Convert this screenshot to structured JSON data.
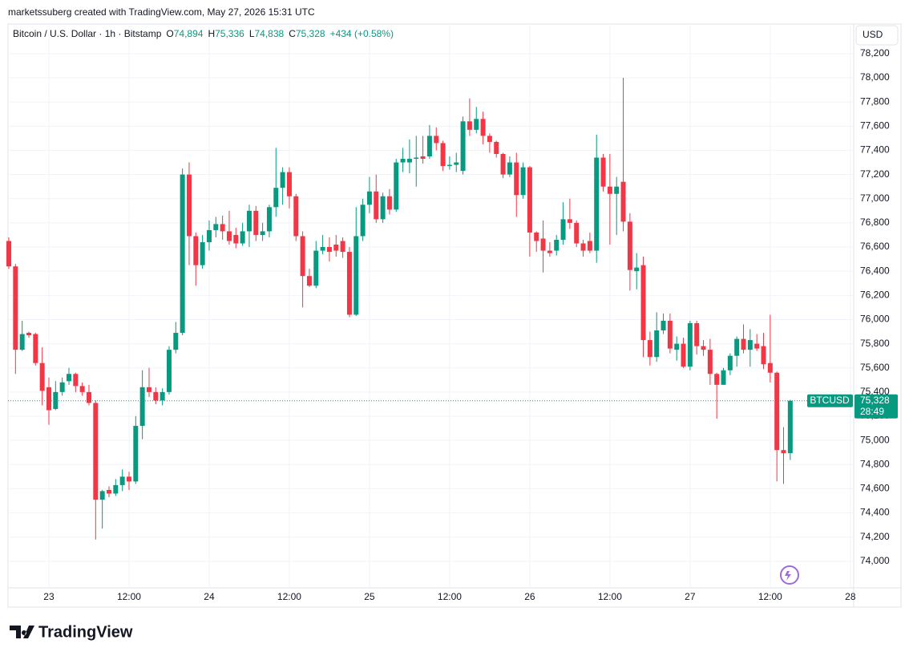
{
  "header": {
    "credit": "marketssuberg created with TradingView.com, May 27, 2026 15:31 UTC"
  },
  "footer": {
    "brand": "TradingView"
  },
  "chart_data": {
    "type": "candlestick",
    "legend": {
      "symbol": "Bitcoin / U.S. Dollar · 1h · Bitstamp",
      "o_key": "O",
      "o": "74,894",
      "h_key": "H",
      "h": "75,336",
      "l_key": "L",
      "l": "74,838",
      "c_key": "C",
      "c": "75,328",
      "change": "+434 (+0.58%)"
    },
    "currency": "USD",
    "tag_symbol": "BTCUSD",
    "tag_price": "75,328",
    "tag_countdown": "28:49",
    "up_color": "#089981",
    "down_color": "#f23645",
    "open": [
      76650,
      76440,
      75750,
      75890,
      75880,
      75640,
      75440,
      75260,
      75400,
      75490,
      75550,
      75450,
      75400,
      75310,
      74510,
      74590,
      74560,
      74630,
      74700,
      74660,
      75120,
      75440,
      75400,
      75330,
      75400,
      75750,
      75890,
      77200,
      76690,
      76450,
      76640,
      76740,
      76790,
      76730,
      76700,
      76630,
      76730,
      76900,
      76700,
      76730,
      76930,
      77090,
      77220,
      77020,
      76690,
      76360,
      76280,
      76570,
      76600,
      76620,
      76650,
      76560,
      76040,
      76690,
      76950,
      77060,
      76830,
      77020,
      76910,
      77300,
      77300,
      77330,
      77350,
      77350,
      77520,
      77460,
      77270,
      77280,
      77230,
      77640,
      77570,
      77660,
      77520,
      77470,
      77370,
      77200,
      77300,
      77030,
      77260,
      76720,
      76670,
      76570,
      76570,
      76660,
      76830,
      76800,
      76630,
      76650,
      76570,
      77340,
      77100,
      77040,
      77140,
      76810,
      76400,
      76450,
      75830,
      75690,
      75910,
      75990,
      75750,
      75800,
      75610,
      75970,
      75780,
      75750,
      75550,
      75460,
      75580,
      75700,
      75840,
      75750,
      75800,
      75780,
      75640,
      75560,
      74920,
      74894
    ],
    "high": [
      76680,
      76460,
      75990,
      75900,
      75890,
      75770,
      75520,
      75490,
      75520,
      75600,
      75560,
      75480,
      75460,
      75330,
      74590,
      74620,
      74680,
      74760,
      74740,
      75200,
      75580,
      75600,
      75440,
      75430,
      75780,
      75980,
      77250,
      77300,
      76720,
      76700,
      76820,
      76850,
      76860,
      76900,
      76760,
      76800,
      76950,
      76940,
      76800,
      76950,
      77420,
      77260,
      77260,
      77040,
      76730,
      76420,
      76650,
      76700,
      76680,
      76700,
      76680,
      76600,
      76930,
      77000,
      77180,
      77200,
      77050,
      77080,
      77330,
      77420,
      77490,
      77520,
      77520,
      77610,
      77590,
      77480,
      77350,
      77380,
      77680,
      77830,
      77760,
      77720,
      77540,
      77480,
      77380,
      77350,
      77380,
      77300,
      77270,
      76730,
      76820,
      76640,
      76700,
      76970,
      77000,
      76820,
      76660,
      76720,
      77530,
      77370,
      77370,
      77180,
      78000,
      76880,
      76550,
      76520,
      75900,
      76060,
      76050,
      76050,
      75860,
      75850,
      75990,
      75990,
      75830,
      75840,
      75560,
      75600,
      75720,
      75860,
      75960,
      75920,
      75880,
      75890,
      76040,
      75570,
      75110,
      75336
    ],
    "low": [
      76420,
      75550,
      75740,
      75850,
      75620,
      75290,
      75130,
      75250,
      75370,
      75460,
      75400,
      75370,
      75290,
      74180,
      74270,
      74530,
      74540,
      74580,
      74590,
      74640,
      75010,
      75360,
      75300,
      75290,
      75380,
      75720,
      75870,
      76450,
      76280,
      76420,
      76570,
      76680,
      76660,
      76620,
      76590,
      76610,
      76600,
      76650,
      76650,
      76680,
      76850,
      76950,
      76920,
      76650,
      76100,
      76270,
      76260,
      76540,
      76480,
      76520,
      76510,
      76020,
      76030,
      76650,
      76880,
      76800,
      76800,
      76870,
      76890,
      77220,
      77210,
      77100,
      77290,
      77330,
      77400,
      77230,
      77240,
      77220,
      77200,
      77520,
      77540,
      77450,
      77380,
      77340,
      77170,
      77180,
      76850,
      77000,
      76520,
      76560,
      76390,
      76520,
      76530,
      76620,
      76750,
      76600,
      76520,
      76550,
      76470,
      77060,
      76620,
      76700,
      76730,
      76240,
      76250,
      75690,
      75620,
      75650,
      75880,
      75720,
      75660,
      75600,
      75580,
      75710,
      75700,
      75460,
      75180,
      75460,
      75540,
      75610,
      75720,
      75610,
      75740,
      75590,
      75480,
      74660,
      74640,
      74838
    ],
    "close": [
      76440,
      75750,
      75880,
      75870,
      75640,
      75410,
      75250,
      75400,
      75480,
      75550,
      75450,
      75400,
      75310,
      74510,
      74580,
      74560,
      74630,
      74700,
      74660,
      75120,
      75440,
      75400,
      75330,
      75400,
      75750,
      75890,
      77200,
      76690,
      76450,
      76640,
      76740,
      76790,
      76730,
      76650,
      76630,
      76730,
      76900,
      76700,
      76730,
      76930,
      77090,
      77220,
      77020,
      76690,
      76360,
      76280,
      76570,
      76600,
      76560,
      76570,
      76560,
      76040,
      76690,
      76950,
      77060,
      76830,
      77020,
      76910,
      77300,
      77330,
      77330,
      77340,
      77330,
      77520,
      77460,
      77270,
      77280,
      77300,
      77640,
      77570,
      77660,
      77520,
      77470,
      77370,
      77200,
      77300,
      77030,
      77260,
      76720,
      76650,
      76570,
      76550,
      76660,
      76830,
      76800,
      76630,
      76570,
      76570,
      77340,
      77100,
      77040,
      77100,
      76810,
      76410,
      76430,
      75830,
      75690,
      75910,
      75990,
      75760,
      75800,
      75610,
      75970,
      75780,
      75750,
      75550,
      75460,
      75580,
      75700,
      75840,
      75750,
      75830,
      75760,
      75630,
      75560,
      74920,
      74894,
      75328
    ],
    "xlim": [
      -0.12,
      126.5
    ],
    "xticks": [
      {
        "value": 6,
        "label": "23"
      },
      {
        "value": 18,
        "label": "12:00"
      },
      {
        "value": 30,
        "label": "24"
      },
      {
        "value": 42,
        "label": "12:00"
      },
      {
        "value": 54,
        "label": "25"
      },
      {
        "value": 66,
        "label": "12:00"
      },
      {
        "value": 78,
        "label": "26"
      },
      {
        "value": 90,
        "label": "12:00"
      },
      {
        "value": 102,
        "label": "27"
      },
      {
        "value": 114,
        "label": "12:00"
      },
      {
        "value": 126,
        "label": "28"
      }
    ],
    "ylim": [
      73780,
      78445
    ],
    "yticks": [
      {
        "value": 74000,
        "label": "74,000"
      },
      {
        "value": 74200,
        "label": "74,200"
      },
      {
        "value": 74400,
        "label": "74,400"
      },
      {
        "value": 74600,
        "label": "74,600"
      },
      {
        "value": 74800,
        "label": "74,800"
      },
      {
        "value": 75000,
        "label": "75,000"
      },
      {
        "value": 75200,
        "label": "75,200"
      },
      {
        "value": 75400,
        "label": "75,400"
      },
      {
        "value": 75600,
        "label": "75,600"
      },
      {
        "value": 75800,
        "label": "75,800"
      },
      {
        "value": 76000,
        "label": "76,000"
      },
      {
        "value": 76200,
        "label": "76,200"
      },
      {
        "value": 76400,
        "label": "76,400"
      },
      {
        "value": 76600,
        "label": "76,600"
      },
      {
        "value": 76800,
        "label": "76,800"
      },
      {
        "value": 77000,
        "label": "77,000"
      },
      {
        "value": 77200,
        "label": "77,200"
      },
      {
        "value": 77400,
        "label": "77,400"
      },
      {
        "value": 77600,
        "label": "77,600"
      },
      {
        "value": 77800,
        "label": "77,800"
      },
      {
        "value": 78000,
        "label": "78,000"
      },
      {
        "value": 78200,
        "label": "78,200"
      }
    ],
    "grid": true
  }
}
